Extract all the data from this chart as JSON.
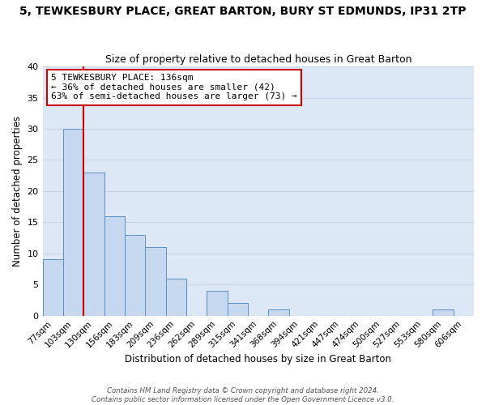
{
  "title": "5, TEWKESBURY PLACE, GREAT BARTON, BURY ST EDMUNDS, IP31 2TP",
  "subtitle": "Size of property relative to detached houses in Great Barton",
  "xlabel": "Distribution of detached houses by size in Great Barton",
  "ylabel": "Number of detached properties",
  "bin_labels": [
    "77sqm",
    "103sqm",
    "130sqm",
    "156sqm",
    "183sqm",
    "209sqm",
    "236sqm",
    "262sqm",
    "289sqm",
    "315sqm",
    "341sqm",
    "368sqm",
    "394sqm",
    "421sqm",
    "447sqm",
    "474sqm",
    "500sqm",
    "527sqm",
    "553sqm",
    "580sqm",
    "606sqm"
  ],
  "bar_values": [
    9,
    30,
    23,
    16,
    13,
    11,
    6,
    0,
    4,
    2,
    0,
    1,
    0,
    0,
    0,
    0,
    0,
    0,
    0,
    1,
    0
  ],
  "bar_color": "#c5d8f0",
  "bar_edge_color": "#5b8fc7",
  "vline_color": "#cc0000",
  "annotation_text": "5 TEWKESBURY PLACE: 136sqm\n← 36% of detached houses are smaller (42)\n63% of semi-detached houses are larger (73) →",
  "annotation_box_edge": "#cc0000",
  "annotation_fontsize": 8.0,
  "ylim": [
    0,
    40
  ],
  "yticks": [
    0,
    5,
    10,
    15,
    20,
    25,
    30,
    35,
    40
  ],
  "grid_color": "#c8d4e8",
  "background_color": "#dce8f5",
  "footer_line1": "Contains HM Land Registry data © Crown copyright and database right 2024.",
  "footer_line2": "Contains public sector information licensed under the Open Government Licence v3.0.",
  "title_fontsize": 10,
  "subtitle_fontsize": 9,
  "xlabel_fontsize": 8.5,
  "ylabel_fontsize": 8.5,
  "tick_fontsize": 7.5,
  "ytick_fontsize": 8
}
